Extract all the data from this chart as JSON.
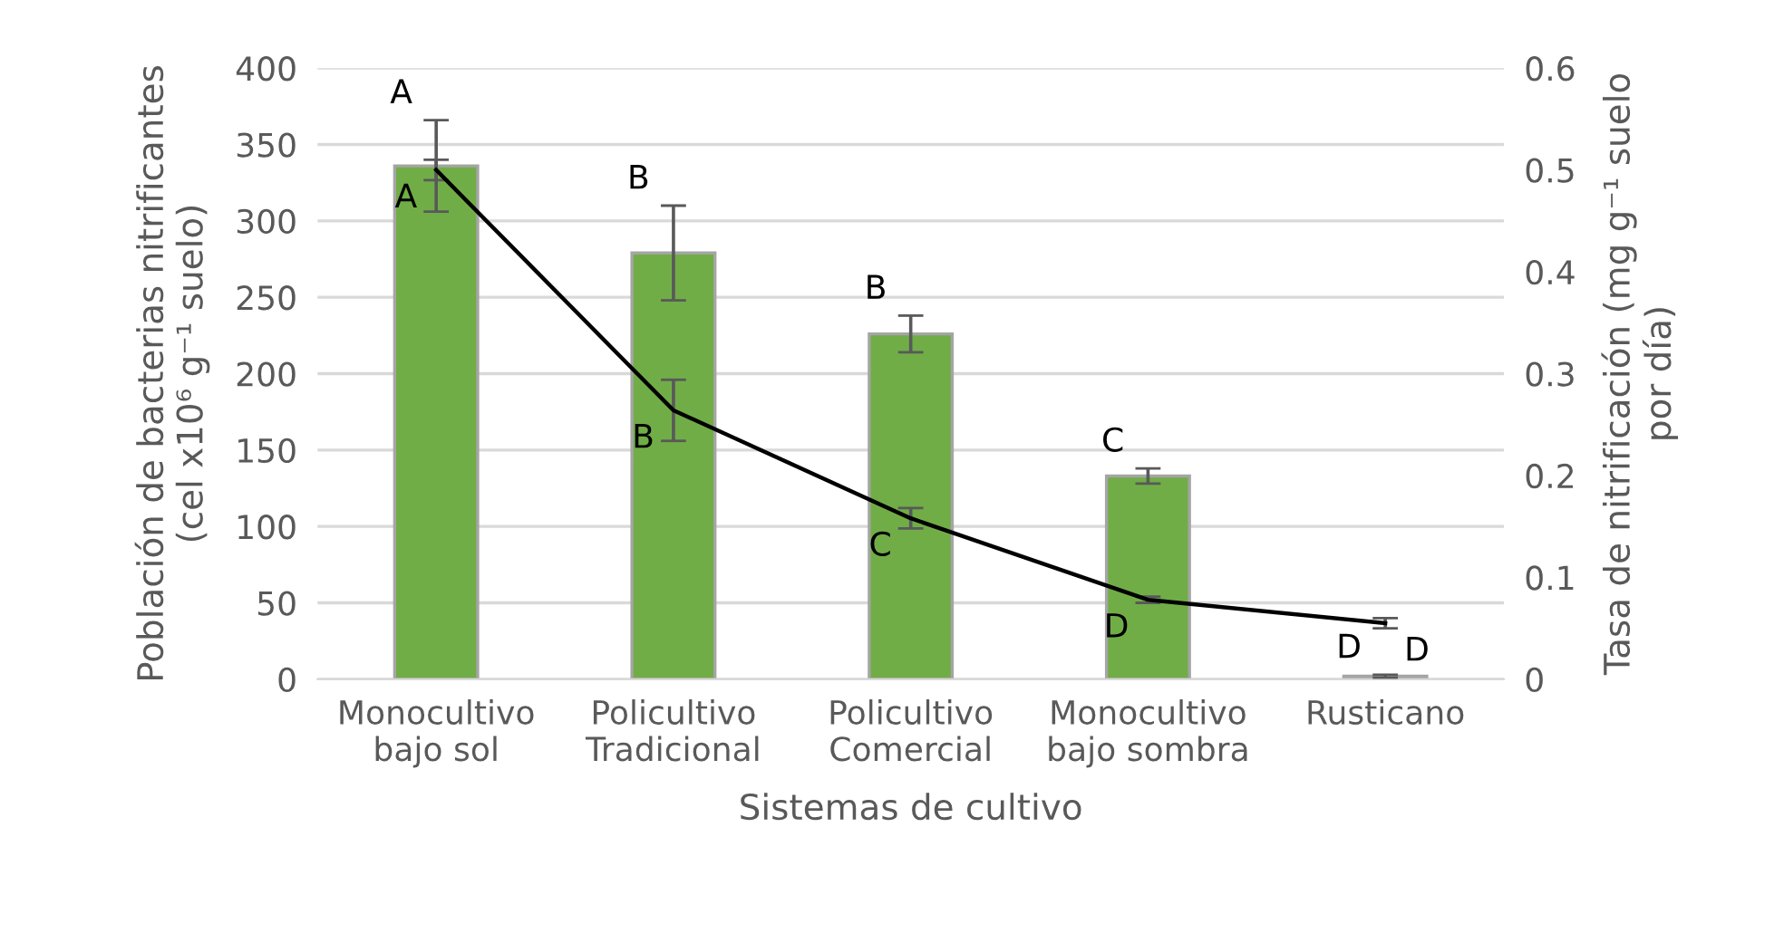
{
  "chart_data": {
    "type": "bar",
    "categories": [
      "Monocultivo\nbajo sol",
      "Policultivo\nTradicional",
      "Policultivo\nComercial",
      "Monocultivo\nbajo sombra",
      "Rusticano"
    ],
    "xlabel": "Sistemas de cultivo",
    "ylabel": "Población de bacterias nitrificantes\n(cel x10⁶ g⁻¹ suelo)",
    "y2label": "Tasa de nitrificación (mg g⁻¹ suelo\npor día)",
    "series": [
      {
        "color": "#70ad47",
        "values": [
          336,
          279,
          226,
          133,
          2
        ],
        "errors": [
          30,
          31,
          12,
          5,
          1
        ]
      },
      {
        "type": "line",
        "axis": "y2",
        "color": "#000000",
        "values": [
          0.5,
          0.264,
          0.158,
          0.078,
          0.055
        ],
        "errors": [
          0.01,
          0.03,
          0.01,
          0.003,
          0.005
        ]
      }
    ],
    "ylim": [
      0,
      400
    ],
    "yticks": [
      0,
      50,
      100,
      150,
      200,
      250,
      300,
      350,
      400
    ],
    "y2lim": [
      0,
      0.6
    ],
    "y2ticks": [
      0,
      0.1,
      0.2,
      0.3,
      0.4,
      0.5,
      0.6
    ],
    "annotations": [
      "A",
      "B",
      "B",
      "C",
      "D",
      "A",
      "B",
      "C",
      "D",
      "D"
    ],
    "grid": "y",
    "legend": false,
    "marker": "none",
    "line_style": "solid"
  }
}
